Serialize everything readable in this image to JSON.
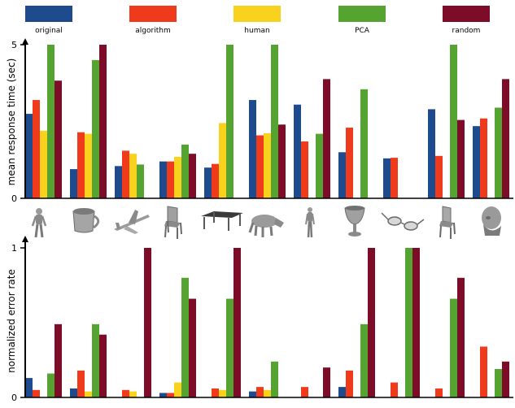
{
  "legend": [
    {
      "name": "original",
      "color": "#1e4b8e"
    },
    {
      "name": "algorithm",
      "color": "#f03a1c"
    },
    {
      "name": "human",
      "color": "#f8d21c"
    },
    {
      "name": "PCA",
      "color": "#55a330"
    },
    {
      "name": "random",
      "color": "#7d0c28"
    }
  ],
  "models": [
    "human-figure-icon",
    "mug-icon",
    "airplane-icon",
    "chair-icon",
    "table-icon",
    "cow-icon",
    "human-figure-icon",
    "goblet-icon",
    "glasses-icon",
    "chair-icon",
    "head-bust-icon"
  ],
  "chart_data": [
    {
      "type": "bar",
      "title": "",
      "xlabel": "",
      "ylabel": "mean response time (sec)",
      "ylim": [
        0,
        5
      ],
      "yticks": [
        "0",
        "5"
      ],
      "grid": false,
      "legend_position": "top",
      "series": [
        {
          "name": "original",
          "values": [
            2.75,
            0.95,
            1.05,
            1.2,
            1.0,
            3.2,
            3.05,
            1.5,
            1.3,
            2.9,
            2.35
          ]
        },
        {
          "name": "algorithm",
          "values": [
            3.2,
            2.15,
            1.55,
            1.2,
            1.12,
            2.05,
            1.85,
            2.3,
            1.32,
            1.38,
            2.6
          ]
        },
        {
          "name": "human",
          "values": [
            2.2,
            2.1,
            1.45,
            1.35,
            2.45,
            2.12,
            null,
            null,
            null,
            null,
            null
          ]
        },
        {
          "name": "PCA",
          "values": [
            5.0,
            4.5,
            1.1,
            1.75,
            5.0,
            5.0,
            2.1,
            3.55,
            null,
            5.0,
            2.95
          ]
        },
        {
          "name": "random",
          "values": [
            3.83,
            5.0,
            null,
            1.45,
            null,
            2.4,
            3.88,
            null,
            null,
            2.55,
            3.88
          ]
        }
      ]
    },
    {
      "type": "bar",
      "title": "",
      "xlabel": "",
      "ylabel": "normalized error rate",
      "ylim": [
        0,
        1
      ],
      "yticks": [
        "0",
        "1"
      ],
      "grid": false,
      "series": [
        {
          "name": "original",
          "values": [
            0.13,
            0.06,
            null,
            0.03,
            null,
            0.04,
            null,
            0.07,
            null,
            null,
            null
          ]
        },
        {
          "name": "algorithm",
          "values": [
            0.05,
            0.18,
            0.05,
            0.03,
            0.06,
            0.07,
            0.07,
            0.18,
            0.1,
            0.06,
            0.34
          ]
        },
        {
          "name": "human",
          "values": [
            null,
            0.04,
            0.04,
            0.1,
            0.05,
            0.05,
            null,
            null,
            null,
            null,
            null
          ]
        },
        {
          "name": "PCA",
          "values": [
            0.16,
            0.49,
            null,
            0.8,
            0.66,
            0.24,
            null,
            0.49,
            1.0,
            0.66,
            0.19
          ]
        },
        {
          "name": "random",
          "values": [
            0.49,
            0.42,
            1.0,
            0.66,
            1.0,
            null,
            0.2,
            1.0,
            1.0,
            0.8,
            0.24
          ]
        }
      ]
    }
  ]
}
